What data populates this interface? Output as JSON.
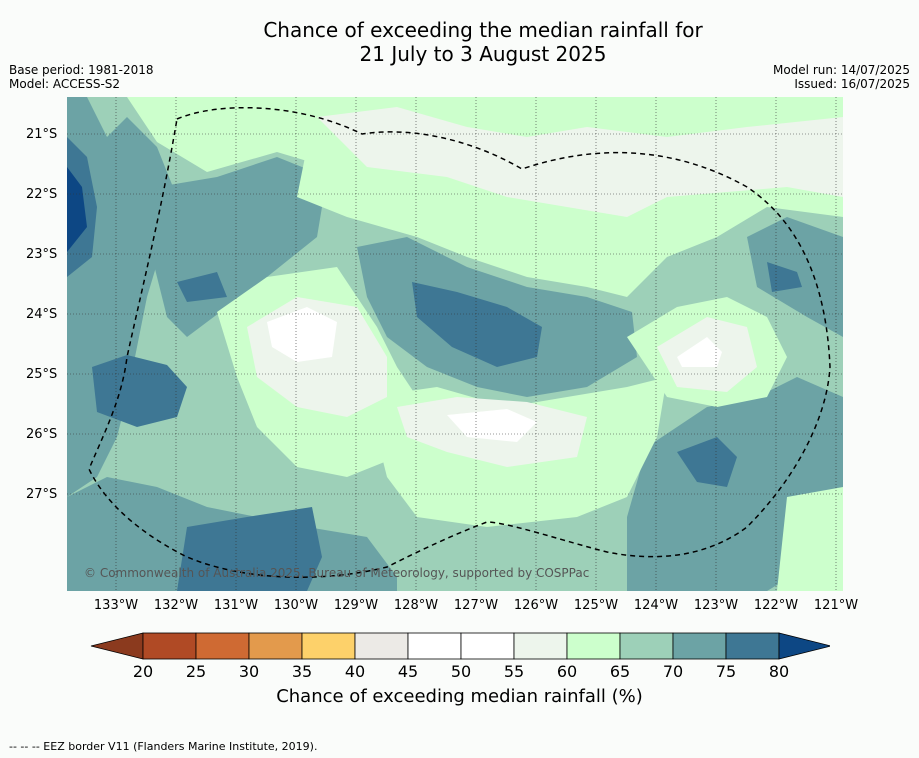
{
  "title": {
    "line1": "Chance of exceeding the median rainfall for",
    "line2": "21 July to 3 August 2025"
  },
  "meta_left": {
    "base_period": "Base period: 1981-2018",
    "model": "Model: ACCESS-S2"
  },
  "meta_right": {
    "model_run": "Model run: 14/07/2025",
    "issued": "Issued: 16/07/2025"
  },
  "latitude_labels": [
    "21°S",
    "22°S",
    "23°S",
    "24°S",
    "25°S",
    "26°S",
    "27°S"
  ],
  "longitude_labels": [
    "133°W",
    "132°W",
    "131°W",
    "130°W",
    "129°W",
    "128°W",
    "127°W",
    "126°W",
    "125°W",
    "124°W",
    "123°W",
    "122°W",
    "121°W"
  ],
  "copyright": "© Commonwealth of Australia 2025, Bureau of Meteorology, supported by COSPPac",
  "colorbar": {
    "ticks": [
      "20",
      "25",
      "30",
      "35",
      "40",
      "45",
      "50",
      "55",
      "60",
      "65",
      "70",
      "75",
      "80"
    ],
    "colors": [
      "#8b3a1e",
      "#b04a25",
      "#cf6a33",
      "#e39a4c",
      "#fdd16a",
      "#eceae6",
      "#ffffff",
      "#ffffff",
      "#edf5ec",
      "#ccffcc",
      "#9dd0b8",
      "#6ca3a5",
      "#3e7794",
      "#0d4784"
    ],
    "label": "Chance of exceeding median rainfall (%)"
  },
  "footnote": "--  --  -- EEZ border V11 (Flanders Marine Institute, 2019)."
}
